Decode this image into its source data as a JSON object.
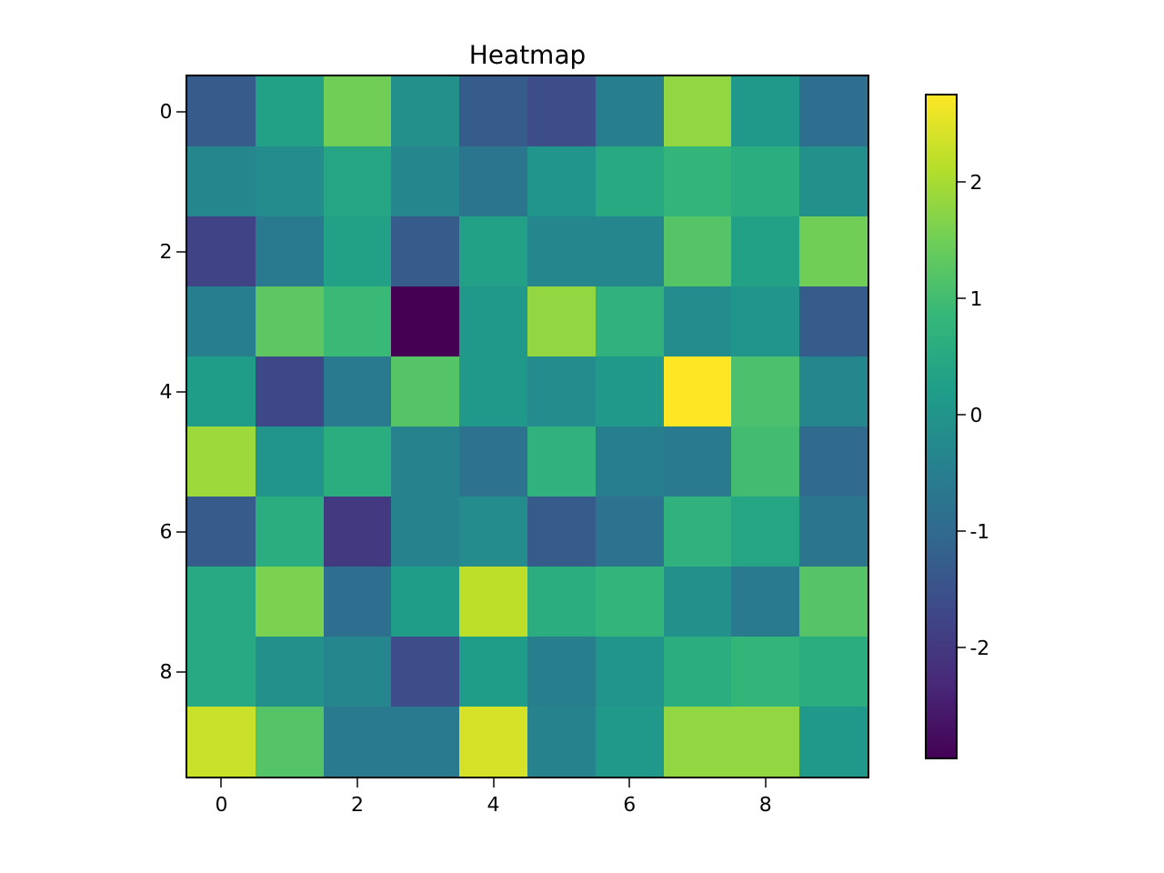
{
  "chart_data": {
    "type": "heatmap",
    "title": "Heatmap",
    "categories": [
      "0",
      null,
      "2",
      null,
      "4",
      null,
      "6",
      null,
      "8",
      null
    ],
    "y_categories": [
      "0",
      null,
      "2",
      null,
      "4",
      null,
      "6",
      null,
      "8",
      null
    ],
    "cells": [
      [
        -1.3,
        0.3,
        1.5,
        -0.1,
        -1.3,
        -1.6,
        -0.5,
        1.8,
        0.1,
        -0.9
      ],
      [
        -0.3,
        -0.2,
        0.4,
        -0.3,
        -0.7,
        0.0,
        0.5,
        0.8,
        0.6,
        -0.1
      ],
      [
        -1.8,
        -0.6,
        0.3,
        -1.3,
        0.3,
        -0.3,
        -0.3,
        1.2,
        0.3,
        1.5
      ],
      [
        -0.5,
        1.3,
        0.9,
        -2.95,
        0.1,
        1.8,
        0.7,
        -0.2,
        0.0,
        -1.3
      ],
      [
        0.2,
        -1.7,
        -0.6,
        1.2,
        0.1,
        -0.2,
        0.1,
        2.75,
        1.1,
        -0.3
      ],
      [
        1.9,
        0.0,
        0.6,
        -0.4,
        -0.8,
        0.7,
        -0.5,
        -0.6,
        1.0,
        -1.0
      ],
      [
        -1.3,
        0.6,
        -2.0,
        -0.4,
        -0.2,
        -1.3,
        -0.8,
        0.7,
        0.4,
        -0.7
      ],
      [
        0.5,
        1.6,
        -0.9,
        0.2,
        2.2,
        0.6,
        0.8,
        -0.1,
        -0.6,
        1.2
      ],
      [
        0.5,
        -0.1,
        -0.3,
        -1.6,
        0.2,
        -0.5,
        0.0,
        0.6,
        0.8,
        0.6
      ],
      [
        2.3,
        1.2,
        -0.6,
        -0.6,
        2.4,
        -0.4,
        0.1,
        1.8,
        1.8,
        0.1
      ]
    ],
    "clim": [
      -2.95,
      2.75
    ],
    "cticks": [
      -2,
      -1,
      0,
      1,
      2
    ]
  }
}
